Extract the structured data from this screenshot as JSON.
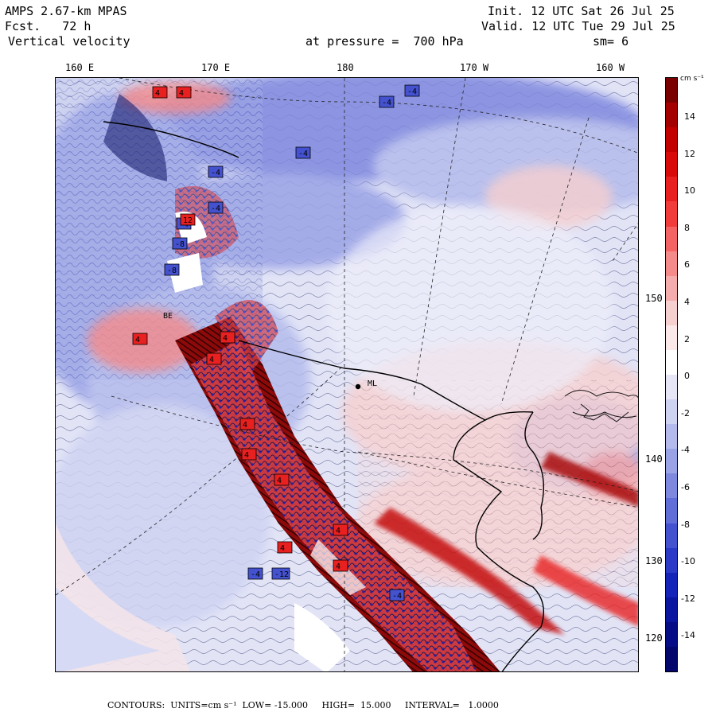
{
  "header": {
    "model": "AMPS 2.67-km MPAS",
    "fcst_label": "Fcst.",
    "fcst_value": "72 h",
    "field": "Vertical velocity",
    "init": "Init. 12 UTC Sat 26 Jul 25",
    "valid": "Valid. 12 UTC Tue 29 Jul 25",
    "level": "at pressure =  700 hPa",
    "smooth": "sm= 6"
  },
  "map": {
    "lon_labels": [
      "160 E",
      "170 E",
      "180",
      "170 W",
      "160 W"
    ],
    "lat_labels": [
      "150 W",
      "140 W",
      "130 W",
      "120 W"
    ],
    "station_label": "ML",
    "station_label_2": "BE",
    "contour_labels": [
      "-4",
      "-4",
      "4",
      "4",
      "-4",
      "-4",
      "-4",
      "-4",
      "12",
      "-8",
      "-8",
      "4",
      "4",
      "4",
      "4",
      "4",
      "4",
      "4",
      "4",
      "4",
      "-4",
      "-12",
      "-4"
    ]
  },
  "colorbar": {
    "unit": "cm s⁻¹",
    "ticks": [
      "14",
      "12",
      "10",
      "8",
      "6",
      "4",
      "2",
      "0",
      "-2",
      "-4",
      "-6",
      "-8",
      "-10",
      "-12",
      "-14"
    ],
    "colors": [
      "#7a0000",
      "#a50000",
      "#c20000",
      "#d80a0a",
      "#e82020",
      "#f23c3c",
      "#f56464",
      "#f48a8a",
      "#f4acac",
      "#f6cfcf",
      "#fbe8e8",
      "#ffffff",
      "#e6e6f7",
      "#cfd3f2",
      "#b4bbec",
      "#9aa3e6",
      "#7f88df",
      "#626ed8",
      "#4452d0",
      "#2a39c6",
      "#1424b8",
      "#0a16a0",
      "#050c86",
      "#03066a"
    ]
  },
  "footer": {
    "text": "CONTOURS:  UNITS=cm s⁻¹  LOW= -15.000     HIGH=  15.000     INTERVAL=   1.0000"
  }
}
